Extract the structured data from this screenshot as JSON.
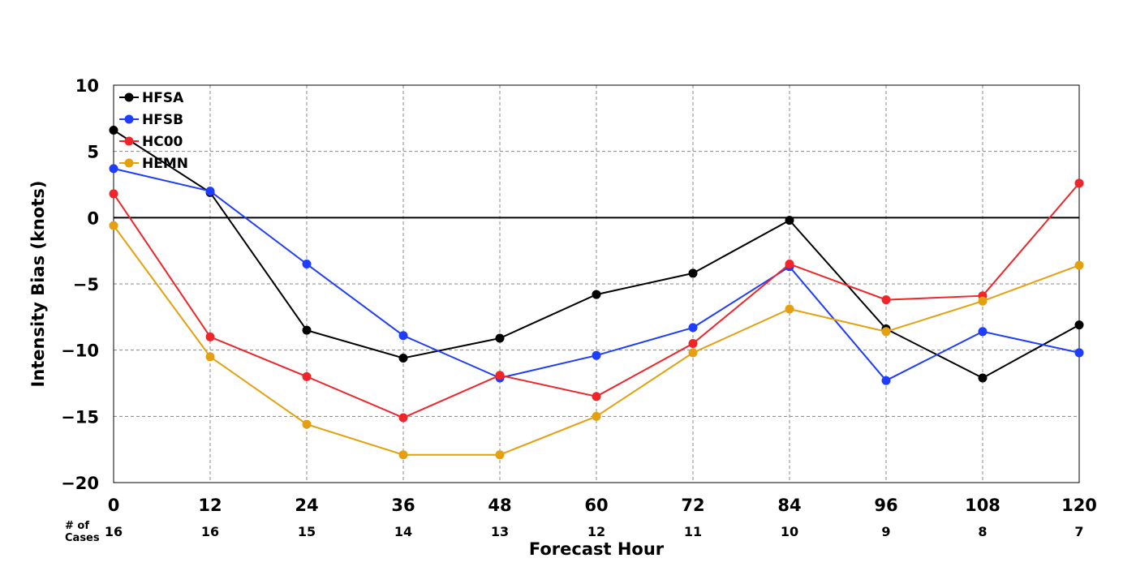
{
  "chart_data": {
    "type": "line",
    "title": "",
    "xlabel": "Forecast Hour",
    "ylabel": "Intensity Bias (knots)",
    "x": [
      0,
      12,
      24,
      36,
      48,
      60,
      72,
      84,
      96,
      108,
      120
    ],
    "xlim": [
      0,
      120
    ],
    "ylim": [
      -20,
      10
    ],
    "yticks": [
      10,
      5,
      0,
      -5,
      -10,
      -15,
      -20
    ],
    "grid": true,
    "zero_line": true,
    "legend_position": "top-left",
    "cases_label": "# of\nCases",
    "cases": [
      16,
      16,
      15,
      14,
      13,
      12,
      11,
      10,
      9,
      8,
      7
    ],
    "series": [
      {
        "name": "HFSA",
        "color": "#000000",
        "values": [
          6.6,
          1.9,
          -8.5,
          -10.6,
          -9.1,
          -5.8,
          -4.2,
          -0.2,
          -8.4,
          -12.1,
          -8.1
        ]
      },
      {
        "name": "HFSB",
        "color": "#1f3dff",
        "values": [
          3.7,
          2.0,
          -3.5,
          -8.9,
          -12.1,
          -10.4,
          -8.3,
          -3.7,
          -12.3,
          -8.6,
          -10.2
        ]
      },
      {
        "name": "HC00",
        "color": "#f0252a",
        "values": [
          1.8,
          -9.0,
          -12.0,
          -15.1,
          -11.9,
          -13.5,
          -9.5,
          -3.5,
          -6.2,
          -5.9,
          2.6
        ]
      },
      {
        "name": "HEMN",
        "color": "#e4a00f",
        "values": [
          -0.6,
          -10.5,
          -15.6,
          -17.9,
          -17.9,
          -15.0,
          -10.2,
          -6.9,
          -8.6,
          -6.3,
          -3.6
        ]
      }
    ]
  }
}
